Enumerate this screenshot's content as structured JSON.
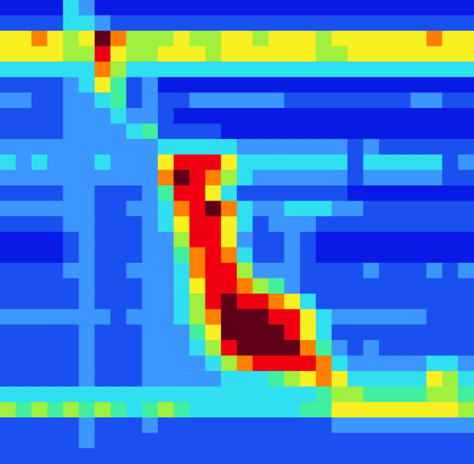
{
  "chart_data": {
    "type": "heatmap",
    "tick_labels": false,
    "zlim": [
      0,
      9
    ],
    "cells": [
      [
        0,
        0,
        0,
        0,
        3,
        2,
        0,
        0,
        0,
        0,
        0,
        0,
        0,
        0,
        0,
        0,
        0,
        0,
        0,
        0,
        0,
        0,
        0,
        0,
        0,
        0,
        0,
        0,
        0,
        0
      ],
      [
        1,
        1,
        1,
        1,
        3,
        3,
        2,
        1,
        1,
        1,
        1,
        1,
        1,
        1,
        1,
        1,
        1,
        1,
        1,
        1,
        1,
        1,
        1,
        1,
        1,
        1,
        1,
        1,
        1,
        1
      ],
      [
        6,
        6,
        7,
        6,
        5,
        6,
        9,
        7,
        5,
        5,
        5,
        6,
        5,
        5,
        6,
        6,
        5,
        6,
        6,
        6,
        5,
        6,
        6,
        6,
        6,
        6,
        6,
        7,
        6,
        6
      ],
      [
        6,
        6,
        6,
        6,
        5,
        5,
        8,
        6,
        5,
        5,
        6,
        6,
        6,
        5,
        6,
        6,
        6,
        6,
        6,
        6,
        5,
        5,
        6,
        6,
        6,
        6,
        6,
        6,
        6,
        6
      ],
      [
        3,
        3,
        3,
        3,
        3,
        3,
        7,
        5,
        3,
        3,
        3,
        3,
        3,
        3,
        3,
        3,
        3,
        3,
        3,
        3,
        3,
        3,
        3,
        3,
        3,
        3,
        3,
        3,
        3,
        3
      ],
      [
        1,
        1,
        1,
        1,
        2,
        3,
        6,
        4,
        1,
        2,
        0,
        0,
        0,
        0,
        0,
        0,
        0,
        0,
        0,
        0,
        0,
        0,
        0,
        0,
        0,
        0,
        0,
        0,
        0,
        0
      ],
      [
        2,
        2,
        1,
        1,
        2,
        2,
        3,
        4,
        1,
        2,
        1,
        1,
        2,
        2,
        2,
        2,
        2,
        2,
        1,
        1,
        1,
        1,
        1,
        1,
        1,
        1,
        2,
        2,
        1,
        1
      ],
      [
        1,
        1,
        1,
        1,
        2,
        2,
        2,
        3,
        2,
        2,
        1,
        0,
        0,
        0,
        0,
        0,
        0,
        0,
        0,
        0,
        0,
        0,
        0,
        0,
        0,
        0,
        0,
        0,
        0,
        0
      ],
      [
        1,
        1,
        1,
        1,
        2,
        2,
        2,
        2,
        3,
        4,
        1,
        1,
        1,
        1,
        0,
        0,
        0,
        0,
        0,
        0,
        0,
        0,
        0,
        0,
        0,
        0,
        0,
        0,
        0,
        0
      ],
      [
        2,
        2,
        2,
        2,
        2,
        2,
        2,
        2,
        2,
        2,
        3,
        3,
        3,
        3,
        3,
        2,
        2,
        2,
        2,
        2,
        2,
        2,
        1,
        2,
        1,
        1,
        1,
        1,
        1,
        1
      ],
      [
        3,
        2,
        3,
        2,
        2,
        2,
        3,
        2,
        2,
        2,
        6,
        8,
        8,
        8,
        6,
        3,
        3,
        3,
        3,
        3,
        3,
        3,
        1,
        3,
        3,
        3,
        3,
        3,
        1,
        2
      ],
      [
        2,
        2,
        2,
        2,
        2,
        2,
        2,
        2,
        2,
        2,
        7,
        9,
        8,
        7,
        5,
        3,
        2,
        2,
        2,
        2,
        2,
        2,
        1,
        2,
        2,
        2,
        2,
        2,
        1,
        1
      ],
      [
        1,
        1,
        1,
        1,
        2,
        2,
        1,
        1,
        1,
        2,
        4,
        8,
        8,
        6,
        3,
        1,
        1,
        1,
        1,
        1,
        1,
        1,
        0,
        0,
        0,
        0,
        0,
        0,
        0,
        0
      ],
      [
        2,
        2,
        2,
        2,
        2,
        2,
        1,
        1,
        2,
        2,
        3,
        7,
        8,
        9,
        7,
        3,
        2,
        2,
        3,
        3,
        3,
        2,
        2,
        1,
        1,
        1,
        1,
        1,
        1,
        1
      ],
      [
        1,
        1,
        1,
        1,
        2,
        2,
        1,
        1,
        1,
        2,
        3,
        6,
        8,
        8,
        6,
        3,
        1,
        2,
        2,
        2,
        1,
        1,
        1,
        1,
        1,
        1,
        1,
        1,
        1,
        1
      ],
      [
        0,
        0,
        0,
        0,
        1,
        2,
        1,
        1,
        1,
        2,
        2,
        5,
        8,
        8,
        6,
        2,
        1,
        1,
        2,
        1,
        0,
        0,
        0,
        0,
        0,
        0,
        0,
        0,
        0,
        0
      ],
      [
        0,
        0,
        0,
        0,
        1,
        2,
        1,
        1,
        1,
        2,
        2,
        4,
        7,
        8,
        7,
        3,
        1,
        1,
        2,
        1,
        0,
        0,
        0,
        0,
        0,
        0,
        0,
        0,
        0,
        0
      ],
      [
        1,
        1,
        1,
        1,
        2,
        2,
        1,
        1,
        2,
        2,
        2,
        3,
        7,
        8,
        8,
        5,
        2,
        2,
        2,
        1,
        1,
        1,
        1,
        2,
        1,
        1,
        1,
        2,
        1,
        2
      ],
      [
        1,
        1,
        1,
        1,
        1,
        2,
        1,
        1,
        1,
        2,
        2,
        3,
        6,
        8,
        8,
        7,
        5,
        4,
        2,
        1,
        1,
        1,
        1,
        1,
        1,
        1,
        1,
        1,
        1,
        1
      ],
      [
        1,
        1,
        1,
        1,
        1,
        2,
        1,
        1,
        1,
        2,
        2,
        3,
        5,
        8,
        9,
        8,
        8,
        7,
        6,
        3,
        1,
        1,
        1,
        1,
        1,
        1,
        1,
        1,
        1,
        1
      ],
      [
        2,
        2,
        2,
        2,
        2,
        2,
        2,
        1,
        2,
        2,
        2,
        3,
        5,
        7,
        9,
        9,
        9,
        8,
        8,
        6,
        3,
        2,
        2,
        2,
        2,
        2,
        2,
        1,
        1,
        1
      ],
      [
        1,
        1,
        1,
        1,
        1,
        2,
        1,
        1,
        1,
        2,
        2,
        2,
        4,
        6,
        9,
        9,
        9,
        9,
        8,
        6,
        3,
        1,
        1,
        1,
        1,
        1,
        1,
        1,
        1,
        1
      ],
      [
        1,
        1,
        1,
        1,
        1,
        2,
        1,
        1,
        1,
        2,
        2,
        2,
        3,
        5,
        8,
        9,
        9,
        9,
        9,
        7,
        4,
        2,
        1,
        2,
        1,
        1,
        1,
        1,
        1,
        1
      ],
      [
        1,
        1,
        1,
        1,
        1,
        2,
        1,
        1,
        1,
        2,
        2,
        2,
        2,
        3,
        5,
        7,
        8,
        8,
        8,
        8,
        7,
        3,
        2,
        2,
        2,
        2,
        2,
        3,
        3,
        2
      ],
      [
        1,
        1,
        1,
        1,
        1,
        2,
        1,
        1,
        1,
        2,
        2,
        2,
        2,
        2,
        3,
        3,
        3,
        4,
        5,
        6,
        7,
        6,
        3,
        3,
        3,
        3,
        3,
        6,
        5,
        3
      ],
      [
        3,
        3,
        3,
        3,
        3,
        3,
        3,
        3,
        3,
        3,
        3,
        3,
        3,
        3,
        3,
        3,
        3,
        3,
        3,
        3,
        4,
        5,
        5,
        4,
        4,
        4,
        4,
        5,
        5,
        4
      ],
      [
        5,
        4,
        5,
        4,
        5,
        4,
        5,
        4,
        3,
        4,
        5,
        4,
        3,
        3,
        3,
        3,
        3,
        3,
        3,
        4,
        4,
        6,
        6,
        6,
        6,
        6,
        6,
        6,
        6,
        5
      ],
      [
        1,
        1,
        1,
        1,
        1,
        2,
        1,
        1,
        1,
        2,
        1,
        1,
        1,
        1,
        1,
        1,
        1,
        1,
        1,
        1,
        1,
        2,
        2,
        2,
        2,
        2,
        2,
        2,
        2,
        2
      ],
      [
        1,
        1,
        1,
        1,
        1,
        2,
        1,
        1,
        1,
        1,
        1,
        1,
        1,
        1,
        1,
        1,
        1,
        1,
        1,
        1,
        1,
        1,
        1,
        1,
        1,
        1,
        1,
        1,
        1,
        1
      ],
      [
        1,
        1,
        1,
        1,
        1,
        1,
        1,
        1,
        1,
        1,
        1,
        1,
        1,
        1,
        1,
        1,
        1,
        1,
        1,
        1,
        1,
        1,
        1,
        1,
        1,
        1,
        1,
        1,
        1,
        1
      ]
    ]
  }
}
